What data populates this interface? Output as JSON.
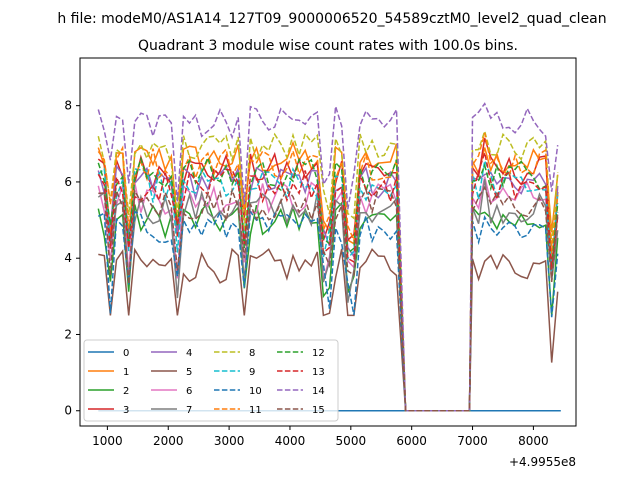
{
  "chart_data": {
    "type": "line",
    "suptitle": "h file: modeM0/AS1A14_127T09_9000006520_54589cztM0_level2_quad_clean",
    "title": "Quadrant 3 module wise count rates with 100.0s bins.",
    "xlabel": "",
    "ylabel": "",
    "x_offset_label": "+4.9955e8",
    "xlim": [
      550,
      8700
    ],
    "ylim": [
      -0.4,
      9.25
    ],
    "xticks": [
      "1000",
      "2000",
      "3000",
      "4000",
      "5000",
      "6000",
      "7000",
      "8000"
    ],
    "xtick_values": [
      1000,
      2000,
      3000,
      4000,
      5000,
      6000,
      7000,
      8000
    ],
    "yticks": [
      "0",
      "2",
      "4",
      "6",
      "8"
    ],
    "ytick_values": [
      0,
      2,
      4,
      6,
      8
    ],
    "legend_position": "lower-left",
    "legend_columns": 4,
    "series": [
      {
        "name": "0",
        "color": "#1f77b4",
        "dash": "solid",
        "base": 0
      },
      {
        "name": "1",
        "color": "#ff7f0e",
        "dash": "solid",
        "base": 6.6
      },
      {
        "name": "2",
        "color": "#2ca02c",
        "dash": "solid",
        "base": 5.0
      },
      {
        "name": "3",
        "color": "#d62728",
        "dash": "solid",
        "base": 6.3
      },
      {
        "name": "4",
        "color": "#9467bd",
        "dash": "solid",
        "base": 6.0
      },
      {
        "name": "5",
        "color": "#8c564b",
        "dash": "solid",
        "base": 3.8
      },
      {
        "name": "6",
        "color": "#e377c2",
        "dash": "solid",
        "base": 5.6
      },
      {
        "name": "7",
        "color": "#7f7f7f",
        "dash": "solid",
        "base": 5.3
      },
      {
        "name": "8",
        "color": "#bcbd22",
        "dash": "dashed",
        "base": 6.9
      },
      {
        "name": "9",
        "color": "#17becf",
        "dash": "dashed",
        "base": 5.9
      },
      {
        "name": "10",
        "color": "#1f77b4",
        "dash": "dashed",
        "base": 4.8
      },
      {
        "name": "11",
        "color": "#ff7f0e",
        "dash": "dashed",
        "base": 6.5
      },
      {
        "name": "12",
        "color": "#2ca02c",
        "dash": "dashed",
        "base": 6.2
      },
      {
        "name": "13",
        "color": "#d62728",
        "dash": "dashed",
        "base": 5.9
      },
      {
        "name": "14",
        "color": "#9467bd",
        "dash": "dashed",
        "base": 7.6
      },
      {
        "name": "15",
        "color": "#8c564b",
        "dash": "dashed",
        "base": 5.4
      }
    ],
    "x_segments": [
      [
        850,
        5750
      ],
      [
        5900,
        6950
      ],
      [
        7000,
        8450
      ]
    ],
    "dip_x": [
      1050,
      1350,
      2150,
      3250,
      4600,
      5000,
      8300
    ]
  }
}
